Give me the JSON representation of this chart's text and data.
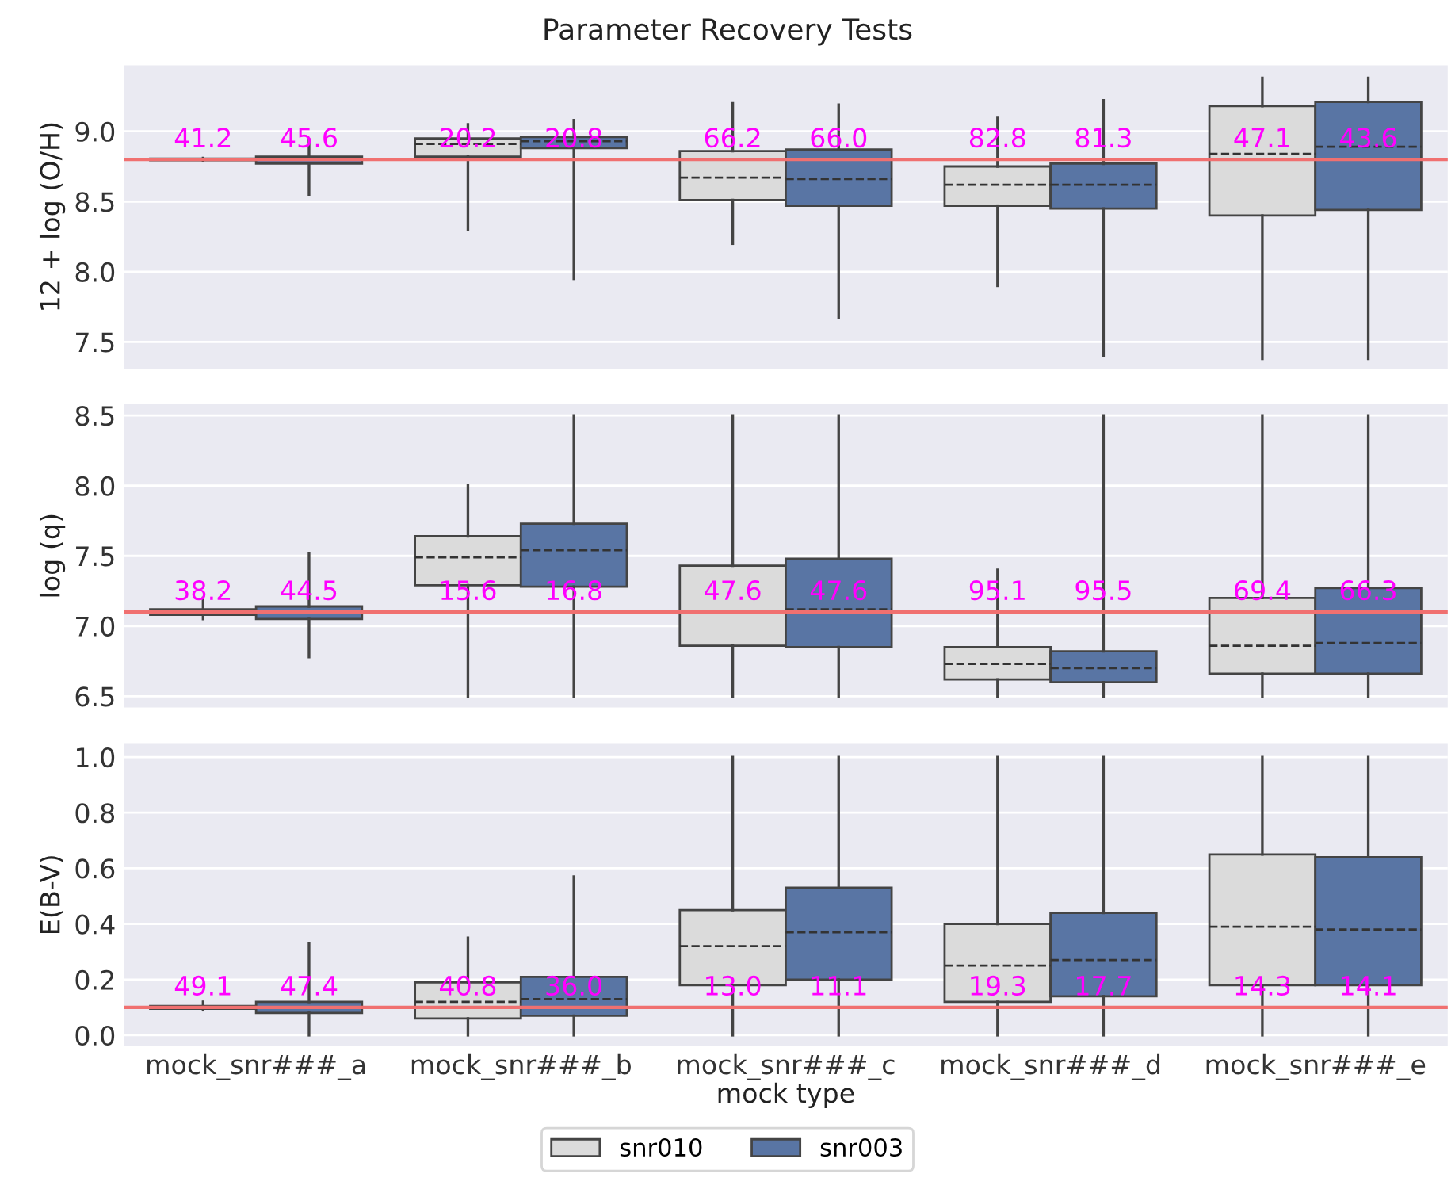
{
  "chart_data": [
    {
      "type": "box",
      "title": "Parameter Recovery Tests",
      "ylabel": "12 + log (O/H)",
      "categories": [
        "mock_snr###_a",
        "mock_snr###_b",
        "mock_snr###_c",
        "mock_snr###_d",
        "mock_snr###_e"
      ],
      "ylim": [
        7.31,
        9.47
      ],
      "yticks": [
        7.5,
        {
          "value": 8,
          "label": "8.0"
        },
        8.5,
        {
          "value": 9,
          "label": "9.0"
        }
      ],
      "grid": "y",
      "tick_labels": "y",
      "legend": "bottom",
      "series": [
        {
          "name": "snr010",
          "color": "#dbdbdb",
          "boxes": [
            {
              "low": 8.79,
              "q1": 8.795,
              "median": 8.8,
              "q3": 8.805,
              "high": 8.81
            },
            {
              "low": 8.3,
              "q1": 8.82,
              "median": 8.91,
              "q3": 8.95,
              "high": 9.05
            },
            {
              "low": 8.2,
              "q1": 8.51,
              "median": 8.67,
              "q3": 8.86,
              "high": 9.2
            },
            {
              "low": 7.9,
              "q1": 8.47,
              "median": 8.62,
              "q3": 8.75,
              "high": 9.1
            },
            {
              "low": 7.38,
              "q1": 8.4,
              "median": 8.84,
              "q3": 9.18,
              "high": 9.38
            }
          ]
        },
        {
          "name": "snr003",
          "color": "#5975a4",
          "boxes": [
            {
              "low": 8.55,
              "q1": 8.77,
              "median": 8.8,
              "q3": 8.82,
              "high": 8.94
            },
            {
              "low": 7.95,
              "q1": 8.88,
              "median": 8.93,
              "q3": 8.96,
              "high": 9.08
            },
            {
              "low": 7.67,
              "q1": 8.47,
              "median": 8.66,
              "q3": 8.87,
              "high": 9.19
            },
            {
              "low": 7.4,
              "q1": 8.45,
              "median": 8.62,
              "q3": 8.77,
              "high": 9.22
            },
            {
              "low": 7.38,
              "q1": 8.44,
              "median": 8.89,
              "q3": 9.21,
              "high": 9.38
            }
          ]
        }
      ],
      "ref_lines": [
        {
          "axis": "y",
          "value": 8.8,
          "color": "#f07070"
        }
      ],
      "annotations": [
        {
          "text": "41.2",
          "x": "mock_snr###_a",
          "y": 8.8
        },
        {
          "text": "45.6",
          "x": "mock_snr###_a",
          "y": 8.8
        },
        {
          "text": "20.2",
          "x": "mock_snr###_b",
          "y": 8.8
        },
        {
          "text": "20.8",
          "x": "mock_snr###_b",
          "y": 8.8
        },
        {
          "text": "66.2",
          "x": "mock_snr###_c",
          "y": 8.8
        },
        {
          "text": "66.0",
          "x": "mock_snr###_c",
          "y": 8.8
        },
        {
          "text": "82.8",
          "x": "mock_snr###_d",
          "y": 8.8
        },
        {
          "text": "81.3",
          "x": "mock_snr###_d",
          "y": 8.8
        },
        {
          "text": "47.1",
          "x": "mock_snr###_e",
          "y": 8.8
        },
        {
          "text": "43.6",
          "x": "mock_snr###_e",
          "y": 8.8
        }
      ]
    },
    {
      "type": "box",
      "ylabel": "log (q)",
      "categories": [
        "mock_snr###_a",
        "mock_snr###_b",
        "mock_snr###_c",
        "mock_snr###_d",
        "mock_snr###_e"
      ],
      "ylim": [
        6.42,
        8.58
      ],
      "yticks": [
        6.5,
        {
          "value": 7,
          "label": "7.0"
        },
        7.5,
        {
          "value": 8,
          "label": "8.0"
        },
        8.5
      ],
      "grid": "y",
      "tick_labels": "y",
      "legend": "bottom",
      "series": [
        {
          "name": "snr010",
          "color": "#dbdbdb",
          "boxes": [
            {
              "low": 7.05,
              "q1": 7.08,
              "median": 7.1,
              "q3": 7.12,
              "high": 7.2
            },
            {
              "low": 6.5,
              "q1": 7.29,
              "median": 7.49,
              "q3": 7.64,
              "high": 8.0
            },
            {
              "low": 6.5,
              "q1": 6.86,
              "median": 7.11,
              "q3": 7.43,
              "high": 8.5
            },
            {
              "low": 6.5,
              "q1": 6.62,
              "median": 6.73,
              "q3": 6.85,
              "high": 7.4
            },
            {
              "low": 6.5,
              "q1": 6.66,
              "median": 6.86,
              "q3": 7.2,
              "high": 8.5
            }
          ]
        },
        {
          "name": "snr003",
          "color": "#5975a4",
          "boxes": [
            {
              "low": 6.78,
              "q1": 7.05,
              "median": 7.1,
              "q3": 7.14,
              "high": 7.52
            },
            {
              "low": 6.5,
              "q1": 7.28,
              "median": 7.54,
              "q3": 7.73,
              "high": 8.5
            },
            {
              "low": 6.5,
              "q1": 6.85,
              "median": 7.12,
              "q3": 7.48,
              "high": 8.5
            },
            {
              "low": 6.5,
              "q1": 6.6,
              "median": 6.7,
              "q3": 6.82,
              "high": 8.5
            },
            {
              "low": 6.5,
              "q1": 6.66,
              "median": 6.88,
              "q3": 7.27,
              "high": 8.5
            }
          ]
        }
      ],
      "ref_lines": [
        {
          "axis": "y",
          "value": 7.1,
          "color": "#f07070"
        }
      ],
      "annotations": [
        {
          "text": "38.2",
          "x": "mock_snr###_a",
          "y": 7.1
        },
        {
          "text": "44.5",
          "x": "mock_snr###_a",
          "y": 7.1
        },
        {
          "text": "15.6",
          "x": "mock_snr###_b",
          "y": 7.1
        },
        {
          "text": "16.8",
          "x": "mock_snr###_b",
          "y": 7.1
        },
        {
          "text": "47.6",
          "x": "mock_snr###_c",
          "y": 7.1
        },
        {
          "text": "47.6",
          "x": "mock_snr###_c",
          "y": 7.1
        },
        {
          "text": "95.1",
          "x": "mock_snr###_d",
          "y": 7.1
        },
        {
          "text": "95.5",
          "x": "mock_snr###_d",
          "y": 7.1
        },
        {
          "text": "69.4",
          "x": "mock_snr###_e",
          "y": 7.1
        },
        {
          "text": "66.3",
          "x": "mock_snr###_e",
          "y": 7.1
        }
      ]
    },
    {
      "type": "box",
      "ylabel": "E(B-V)",
      "xlabel": "mock type",
      "categories": [
        "mock_snr###_a",
        "mock_snr###_b",
        "mock_snr###_c",
        "mock_snr###_d",
        "mock_snr###_e"
      ],
      "ylim": [
        -0.04,
        1.05
      ],
      "yticks": [
        {
          "value": 0,
          "label": "0.0"
        },
        0.2,
        0.4,
        0.6,
        0.8,
        {
          "value": 1,
          "label": "1.0"
        }
      ],
      "grid": "y",
      "legend": "bottom",
      "series": [
        {
          "name": "snr010",
          "color": "#dbdbdb",
          "boxes": [
            {
              "low": 0.09,
              "q1": 0.095,
              "median": 0.1,
              "q3": 0.105,
              "high": 0.12
            },
            {
              "low": 0.0,
              "q1": 0.06,
              "median": 0.12,
              "q3": 0.19,
              "high": 0.35
            },
            {
              "low": 0.0,
              "q1": 0.18,
              "median": 0.32,
              "q3": 0.45,
              "high": 1.0
            },
            {
              "low": 0.0,
              "q1": 0.12,
              "median": 0.25,
              "q3": 0.4,
              "high": 1.0
            },
            {
              "low": 0.0,
              "q1": 0.18,
              "median": 0.39,
              "q3": 0.65,
              "high": 1.0
            }
          ]
        },
        {
          "name": "snr003",
          "color": "#5975a4",
          "boxes": [
            {
              "low": 0.0,
              "q1": 0.08,
              "median": 0.1,
              "q3": 0.12,
              "high": 0.33
            },
            {
              "low": 0.0,
              "q1": 0.07,
              "median": 0.13,
              "q3": 0.21,
              "high": 0.57
            },
            {
              "low": 0.0,
              "q1": 0.2,
              "median": 0.37,
              "q3": 0.53,
              "high": 1.0
            },
            {
              "low": 0.0,
              "q1": 0.14,
              "median": 0.27,
              "q3": 0.44,
              "high": 1.0
            },
            {
              "low": 0.0,
              "q1": 0.18,
              "median": 0.38,
              "q3": 0.64,
              "high": 1.0
            }
          ]
        }
      ],
      "ref_lines": [
        {
          "axis": "y",
          "value": 0.1,
          "color": "#f07070"
        }
      ],
      "annotations": [
        {
          "text": "49.1",
          "x": "mock_snr###_a",
          "y": 0.1
        },
        {
          "text": "47.4",
          "x": "mock_snr###_a",
          "y": 0.1
        },
        {
          "text": "40.8",
          "x": "mock_snr###_b",
          "y": 0.1
        },
        {
          "text": "36.0",
          "x": "mock_snr###_b",
          "y": 0.1
        },
        {
          "text": "13.0",
          "x": "mock_snr###_c",
          "y": 0.1
        },
        {
          "text": "11.1",
          "x": "mock_snr###_c",
          "y": 0.1
        },
        {
          "text": "19.3",
          "x": "mock_snr###_d",
          "y": 0.1
        },
        {
          "text": "17.7",
          "x": "mock_snr###_d",
          "y": 0.1
        },
        {
          "text": "14.3",
          "x": "mock_snr###_e",
          "y": 0.1
        },
        {
          "text": "14.1",
          "x": "mock_snr###_e",
          "y": 0.1
        }
      ]
    }
  ]
}
